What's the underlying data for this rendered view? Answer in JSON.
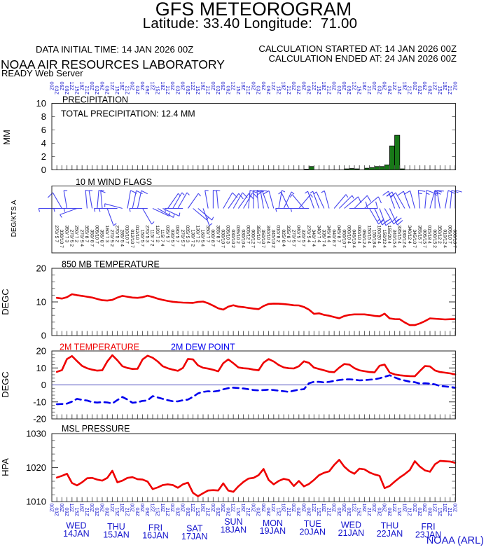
{
  "header": {
    "title": "GFS METEOROGRAM",
    "subtitle": "Latitude: 33.40 Longitude:  71.00",
    "data_initial_time": "DATA INITIAL TIME: 14 JAN 2026 00Z",
    "calc_started": "CALCULATION STARTED AT: 14 JAN 2026 00Z",
    "calc_ended": "CALCULATION ENDED AT: 24 JAN 2026 00Z",
    "organization": "NOAA AIR RESOURCES LABORATORY",
    "server": "READY Web Server"
  },
  "footer": {
    "credit": "NOAA (ARL)"
  },
  "chart_data": {
    "type": "meteorogram",
    "time_axis": {
      "start": "14 JAN 2026 00Z",
      "end": "24 JAN 2026 00Z",
      "step_hours": 3,
      "n_steps": 81,
      "hour_label_cycle": [
        "00Z",
        "03Z",
        "06Z",
        "09Z",
        "12Z",
        "15Z",
        "18Z",
        "21Z"
      ],
      "day_labels": [
        {
          "line1": "WED",
          "line2": "14JAN"
        },
        {
          "line1": "THU",
          "line2": "15JAN"
        },
        {
          "line1": "FRI",
          "line2": "16JAN"
        },
        {
          "line1": "SAT",
          "line2": "17JAN"
        },
        {
          "line1": "SUN",
          "line2": "18JAN"
        },
        {
          "line1": "MON",
          "line2": "19JAN"
        },
        {
          "line1": "TUE",
          "line2": "20JAN"
        },
        {
          "line1": "WED",
          "line2": "21JAN"
        },
        {
          "line1": "THU",
          "line2": "22JAN"
        },
        {
          "line1": "FRI",
          "line2": "23JAN"
        }
      ]
    },
    "panels": [
      {
        "id": "precip",
        "title": "PRECIPITATION",
        "annotation": "TOTAL PRECIPITATION:  12.4 MM",
        "ylabel": "MM",
        "type": "bar",
        "ylim": [
          0,
          10
        ],
        "yticks": [
          0,
          2,
          4,
          6,
          8,
          10
        ],
        "bar_values_mm": [
          0,
          0,
          0,
          0,
          0,
          0,
          0,
          0,
          0,
          0,
          0,
          0,
          0,
          0,
          0,
          0,
          0,
          0,
          0,
          0,
          0,
          0,
          0,
          0,
          0,
          0,
          0,
          0,
          0,
          0,
          0,
          0,
          0,
          0,
          0,
          0,
          0,
          0,
          0,
          0,
          0,
          0,
          0,
          0,
          0,
          0,
          0,
          0,
          0,
          0,
          0.1,
          0.5,
          0,
          0,
          0,
          0,
          0,
          0,
          0.15,
          0.2,
          0.15,
          0,
          0.25,
          0.35,
          0.5,
          0.5,
          0.75,
          3.6,
          5.2,
          0.15,
          0,
          0,
          0,
          0,
          0,
          0,
          0,
          0,
          0,
          0
        ],
        "total_mm": 12.4
      },
      {
        "id": "wind",
        "title": "10 M  WIND FLAGS",
        "ylabel": "DEG/KTS  A",
        "type": "windbarbs",
        "directions_deg": [
          270,
          330,
          350,
          270,
          250,
          270,
          355,
          350,
          5,
          355,
          160,
          270,
          270,
          285,
          10,
          12,
          12,
          150,
          270,
          115,
          120,
          115,
          35,
          30,
          30,
          270,
          35,
          130,
          130,
          160,
          350,
          0,
          355,
          30,
          35,
          30,
          35,
          30,
          5,
          0,
          355,
          350,
          340,
          345,
          10,
          25,
          335,
          270,
          40,
          320,
          270,
          340,
          340,
          335,
          345,
          40,
          45,
          50,
          90,
          45,
          90,
          50,
          150,
          155,
          160,
          150,
          155,
          340,
          335,
          330,
          340,
          345,
          355,
          5,
          15,
          0,
          350,
          10,
          5,
          0
        ],
        "speeds_kt": [
          5,
          10,
          7,
          5,
          7,
          5,
          8,
          8,
          10,
          8,
          7,
          5,
          5,
          5,
          10,
          10,
          10,
          5,
          5,
          7,
          7,
          7,
          5,
          5,
          5,
          5,
          5,
          7,
          7,
          5,
          7,
          8,
          8,
          10,
          10,
          10,
          10,
          10,
          12,
          12,
          10,
          10,
          10,
          10,
          8,
          8,
          8,
          5,
          5,
          5,
          5,
          7,
          7,
          7,
          8,
          8,
          8,
          10,
          10,
          10,
          10,
          12,
          15,
          18,
          20,
          22,
          20,
          15,
          15,
          12,
          12,
          10,
          15,
          15,
          18,
          15,
          12,
          12,
          10,
          10
        ],
        "stability_a": [
          7,
          7,
          3,
          2,
          2,
          4,
          7,
          7,
          7,
          7,
          3,
          2,
          2,
          4,
          7,
          7,
          7,
          7,
          3,
          2,
          2,
          4,
          7,
          7,
          7,
          7,
          3,
          2,
          2,
          4,
          7,
          7,
          7,
          7,
          3,
          2,
          2,
          4,
          7,
          7,
          7,
          7,
          4,
          2,
          2,
          4,
          7,
          7,
          7,
          7,
          4,
          4,
          4,
          4,
          4,
          7,
          7,
          7,
          4,
          4,
          4,
          4,
          4,
          4,
          4,
          4,
          4,
          4,
          4,
          4,
          4,
          7,
          7,
          7,
          4,
          2,
          2,
          4,
          7,
          7
        ]
      },
      {
        "id": "t850",
        "title": "850 MB  TEMPERATURE",
        "ylabel": "DEGC",
        "type": "line",
        "ylim": [
          0,
          20
        ],
        "yticks": [
          0,
          10,
          20
        ],
        "values_degc": [
          11.2,
          11.0,
          11.4,
          12.3,
          12.0,
          11.8,
          11.55,
          11.3,
          10.9,
          10.5,
          10.4,
          10.6,
          11.3,
          11.8,
          11.55,
          11.3,
          11.2,
          11.4,
          11.85,
          11.45,
          10.95,
          10.6,
          10.3,
          10.05,
          9.9,
          9.8,
          9.75,
          9.7,
          10.0,
          10.1,
          9.6,
          8.9,
          8.1,
          7.7,
          8.6,
          9.0,
          8.6,
          8.45,
          8.2,
          8.0,
          7.85,
          8.8,
          9.4,
          9.5,
          9.45,
          9.35,
          9.2,
          9.0,
          8.95,
          8.5,
          7.7,
          6.45,
          6.6,
          6.15,
          5.9,
          5.5,
          5.15,
          5.8,
          6.15,
          6.3,
          6.3,
          6.3,
          6.1,
          5.85,
          5.7,
          6.5,
          5.1,
          4.9,
          4.85,
          3.9,
          3.1,
          3.1,
          3.6,
          4.3,
          5.1,
          5.0,
          4.9,
          4.8,
          4.85,
          4.9
        ]
      },
      {
        "id": "t2m",
        "title": "2M TEMPERATURE",
        "title2": "2M   DEW POINT",
        "ylabel": "DEGC",
        "type": "line",
        "ylim": [
          -20,
          20
        ],
        "yticks": [
          -20,
          -10,
          0,
          10,
          20
        ],
        "temperature_degc": [
          7.7,
          8.7,
          15.2,
          17.0,
          14.0,
          11.2,
          9.8,
          9.0,
          8.4,
          8.6,
          13.8,
          17.5,
          14.5,
          11.0,
          10.0,
          9.4,
          9.5,
          15.0,
          17.2,
          16.0,
          13.8,
          11.0,
          9.8,
          9.0,
          8.3,
          10.0,
          15.3,
          15.0,
          11.5,
          10.1,
          9.6,
          8.9,
          8.0,
          12.8,
          15.0,
          12.8,
          10.3,
          9.8,
          9.6,
          9.0,
          8.6,
          13.1,
          15.2,
          13.8,
          11.7,
          10.3,
          9.8,
          9.7,
          11.0,
          13.9,
          13.0,
          10.2,
          9.4,
          8.6,
          7.7,
          7.5,
          10.2,
          12.3,
          12.0,
          9.9,
          8.6,
          8.1,
          7.6,
          7.4,
          11.3,
          12.0,
          7.3,
          6.2,
          5.7,
          5.4,
          5.2,
          5.1,
          8.2,
          11.1,
          10.9,
          8.5,
          7.6,
          7.2,
          6.8,
          6.2
        ],
        "dew_point_degc": [
          -11.4,
          -11.2,
          -11.0,
          -9.8,
          -8.2,
          -8.8,
          -9.2,
          -10.1,
          -10.4,
          -10.1,
          -10.3,
          -10.9,
          -8.9,
          -7.1,
          -8.6,
          -10.5,
          -10.2,
          -9.4,
          -9.1,
          -6.6,
          -7.4,
          -8.2,
          -9.0,
          -9.6,
          -9.7,
          -9.0,
          -8.6,
          -7.0,
          -5.0,
          -4.1,
          -3.7,
          -3.9,
          -3.5,
          -2.6,
          -1.9,
          -1.6,
          -1.8,
          -2.1,
          -2.5,
          -3.0,
          -3.2,
          -3.0,
          -2.8,
          -3.0,
          -3.4,
          -3.7,
          -4.1,
          -3.4,
          -2.8,
          -2.5,
          1.0,
          1.8,
          1.8,
          1.5,
          1.8,
          2.4,
          2.9,
          3.2,
          3.3,
          3.1,
          2.7,
          2.8,
          3.1,
          3.3,
          3.9,
          4.8,
          5.7,
          4.4,
          3.3,
          2.6,
          1.9,
          1.6,
          0.8,
          1.0,
          0.8,
          0.3,
          -0.6,
          -0.9,
          -1.2,
          -1.6
        ]
      },
      {
        "id": "msl",
        "title": "MSL PRESSURE",
        "ylabel": "HPA",
        "type": "line",
        "ylim": [
          1010,
          1030
        ],
        "yticks": [
          1010,
          1020,
          1030
        ],
        "values_hpa": [
          1017.1,
          1017.6,
          1018.2,
          1015.5,
          1014.8,
          1015.7,
          1016.9,
          1017.0,
          1016.5,
          1016.2,
          1017.0,
          1019.1,
          1015.7,
          1016.2,
          1017.0,
          1017.2,
          1016.6,
          1016.5,
          1015.9,
          1013.7,
          1014.2,
          1014.9,
          1015.1,
          1014.9,
          1014.1,
          1015.1,
          1015.6,
          1012.6,
          1011.6,
          1012.5,
          1013.3,
          1013.4,
          1013.3,
          1015.4,
          1013.3,
          1012.9,
          1014.5,
          1015.8,
          1016.8,
          1017.0,
          1017.8,
          1019.6,
          1016.4,
          1015.1,
          1016.1,
          1016.7,
          1016.4,
          1014.6,
          1016.1,
          1014.5,
          1015.2,
          1016.4,
          1017.8,
          1018.5,
          1018.9,
          1020.8,
          1022.3,
          1020.3,
          1019.0,
          1018.2,
          1019.7,
          1019.5,
          1018.6,
          1018.0,
          1017.6,
          1014.0,
          1014.6,
          1015.9,
          1017.1,
          1018.1,
          1019.3,
          1021.9,
          1020.3,
          1019.2,
          1018.8,
          1021.0,
          1022.0,
          1021.9,
          1021.8,
          1021.4
        ]
      }
    ],
    "colors": {
      "temperature_line": "#ee0000",
      "dew_point_line": "#0000ee",
      "pressure_line": "#ee0000",
      "precip_bar_fill": "#187818",
      "precip_bar_edge": "#000000",
      "wind_barb": "#4444ee",
      "time_label_blue": "#1414cc",
      "axis_black": "#222222"
    },
    "legend_position": "panel titles above each panel",
    "grid": false
  }
}
